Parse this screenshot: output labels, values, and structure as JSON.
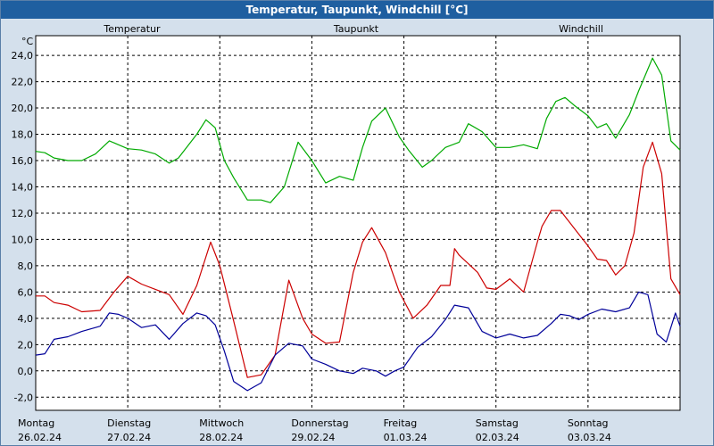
{
  "chart_data": {
    "type": "line",
    "title": "Temperatur, Taupunkt, Windchill [°C]",
    "ylabel": "°C",
    "ylim": [
      -3,
      25.5
    ],
    "yticks": [
      "-2,0",
      "0,0",
      "2,0",
      "4,0",
      "6,0",
      "8,0",
      "10,0",
      "12,0",
      "14,0",
      "16,0",
      "18,0",
      "20,0",
      "22,0",
      "24,0"
    ],
    "ytick_values": [
      -2,
      0,
      2,
      4,
      6,
      8,
      10,
      12,
      14,
      16,
      18,
      20,
      22,
      24
    ],
    "xlim": [
      0,
      7
    ],
    "day_labels": [
      {
        "day": "Montag",
        "date": "26.02.24"
      },
      {
        "day": "Dienstag",
        "date": "27.02.24"
      },
      {
        "day": "Mittwoch",
        "date": "28.02.24"
      },
      {
        "day": "Donnerstag",
        "date": "29.02.24"
      },
      {
        "day": "Freitag",
        "date": "01.03.24"
      },
      {
        "day": "Samstag",
        "date": "02.03.24"
      },
      {
        "day": "Sonntag",
        "date": "03.03.24"
      }
    ],
    "series": [
      {
        "name": "Temperatur",
        "color": "#cc0000",
        "x": [
          0,
          0.1,
          0.2,
          0.35,
          0.5,
          0.7,
          0.85,
          1.0,
          1.15,
          1.3,
          1.45,
          1.6,
          1.75,
          1.9,
          2.0,
          2.15,
          2.3,
          2.45,
          2.6,
          2.75,
          2.9,
          3.0,
          3.15,
          3.3,
          3.45,
          3.55,
          3.65,
          3.8,
          3.95,
          4.1,
          4.25,
          4.4,
          4.5,
          4.55,
          4.6,
          4.8,
          4.9,
          5.0,
          5.15,
          5.3,
          5.45,
          5.5,
          5.6,
          5.7,
          5.8,
          5.9,
          6.0,
          6.1,
          6.2,
          6.3,
          6.4,
          6.5,
          6.6,
          6.7,
          6.8,
          6.9,
          7.0
        ],
        "y": [
          5.7,
          5.7,
          5.2,
          5.0,
          4.5,
          4.6,
          6.0,
          7.2,
          6.6,
          6.2,
          5.8,
          4.3,
          6.5,
          9.8,
          8.0,
          3.8,
          -0.5,
          -0.3,
          1.2,
          6.9,
          4.0,
          2.8,
          2.1,
          2.2,
          7.5,
          9.8,
          10.9,
          9.0,
          6.0,
          4.0,
          5.0,
          6.5,
          6.5,
          9.3,
          8.8,
          7.5,
          6.3,
          6.2,
          7.0,
          6.0,
          9.8,
          11.0,
          12.2,
          12.2,
          11.3,
          10.4,
          9.5,
          8.5,
          8.4,
          7.3,
          8.0,
          10.5,
          15.5,
          17.4,
          15.0,
          7.0,
          5.8
        ]
      },
      {
        "name": "Taupunkt",
        "color": "#000099",
        "x": [
          0,
          0.1,
          0.2,
          0.35,
          0.5,
          0.7,
          0.8,
          0.9,
          1.0,
          1.15,
          1.3,
          1.45,
          1.6,
          1.75,
          1.85,
          1.95,
          2.05,
          2.15,
          2.3,
          2.45,
          2.6,
          2.75,
          2.9,
          3.0,
          3.15,
          3.3,
          3.45,
          3.55,
          3.7,
          3.8,
          3.9,
          4.0,
          4.15,
          4.3,
          4.45,
          4.55,
          4.7,
          4.85,
          5.0,
          5.15,
          5.3,
          5.45,
          5.6,
          5.7,
          5.8,
          5.9,
          6.0,
          6.15,
          6.3,
          6.45,
          6.55,
          6.65,
          6.75,
          6.85,
          6.95,
          7.0
        ],
        "y": [
          1.2,
          1.3,
          2.4,
          2.6,
          3.0,
          3.4,
          4.4,
          4.3,
          4.0,
          3.3,
          3.5,
          2.4,
          3.6,
          4.4,
          4.2,
          3.5,
          1.5,
          -0.8,
          -1.5,
          -0.9,
          1.2,
          2.1,
          1.9,
          0.9,
          0.5,
          0.0,
          -0.2,
          0.2,
          0.0,
          -0.4,
          0.0,
          0.3,
          1.8,
          2.6,
          3.9,
          5.0,
          4.8,
          3.0,
          2.5,
          2.8,
          2.5,
          2.7,
          3.6,
          4.3,
          4.2,
          3.9,
          4.3,
          4.7,
          4.5,
          4.8,
          6.0,
          5.8,
          2.8,
          2.2,
          4.4,
          3.4
        ]
      },
      {
        "name": "Windchill",
        "color": "#00aa00",
        "x": [
          0,
          0.1,
          0.2,
          0.35,
          0.5,
          0.65,
          0.8,
          0.9,
          1.0,
          1.15,
          1.3,
          1.45,
          1.55,
          1.75,
          1.85,
          1.95,
          2.05,
          2.15,
          2.3,
          2.45,
          2.55,
          2.7,
          2.85,
          3.0,
          3.15,
          3.3,
          3.45,
          3.55,
          3.65,
          3.8,
          3.95,
          4.05,
          4.2,
          4.3,
          4.45,
          4.6,
          4.7,
          4.85,
          5.0,
          5.15,
          5.3,
          5.45,
          5.55,
          5.65,
          5.75,
          5.85,
          6.0,
          6.1,
          6.2,
          6.3,
          6.45,
          6.55,
          6.7,
          6.8,
          6.9,
          7.0
        ],
        "y": [
          16.7,
          16.6,
          16.2,
          16.0,
          16.0,
          16.5,
          17.5,
          17.2,
          16.9,
          16.8,
          16.5,
          15.8,
          16.2,
          18.0,
          19.1,
          18.5,
          16.0,
          14.7,
          13.0,
          13.0,
          12.8,
          14.0,
          17.4,
          16.0,
          14.3,
          14.8,
          14.5,
          17.0,
          19.0,
          20.0,
          17.8,
          16.8,
          15.5,
          16.0,
          17.0,
          17.4,
          18.8,
          18.2,
          17.0,
          17.0,
          17.2,
          16.9,
          19.2,
          20.5,
          20.8,
          20.2,
          19.4,
          18.5,
          18.8,
          17.7,
          19.5,
          21.3,
          23.8,
          22.5,
          17.5,
          16.8
        ]
      }
    ]
  }
}
